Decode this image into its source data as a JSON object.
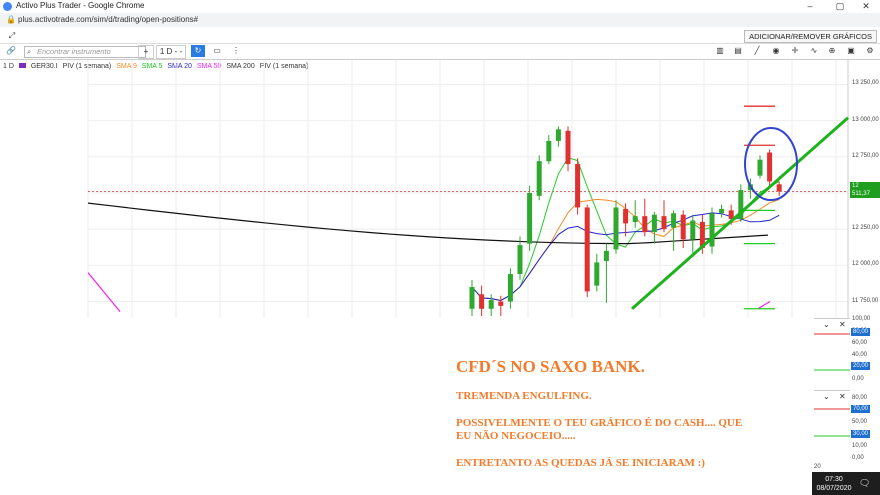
{
  "browser": {
    "window_title": "Activo Plus Trader - Google Chrome",
    "url": "plus.activotrade.com/sim/d/trading/open-positions#"
  },
  "toolbar": {
    "add_remove_label": "ADICIONAR/REMOVER GRÁFICOS"
  },
  "chart_toolbar": {
    "search_placeholder": "Encontrar instrumento",
    "plus": "+",
    "timeframe": "1 D",
    "dashes": "- -"
  },
  "legend": {
    "period": "1 D",
    "symbol": "GER30.I",
    "piv": "PIV (1 semana)",
    "sma9": "SMA 9",
    "sma5": "SMA 5",
    "sma20": "SMA 20",
    "sma50": "SMA 50",
    "sma200": "SMA 200",
    "piv2": "PIV (1 semana)"
  },
  "colors": {
    "sma9": "#f28c28",
    "sma5": "#22cc22",
    "sma20": "#2222cc",
    "sma50": "#ee22ee",
    "sma200": "#111111",
    "bull": "#2ea82e",
    "bear": "#e03030",
    "trendline": "#1eb31e",
    "circle": "#3344cc",
    "overlay_text": "#f47a2a"
  },
  "chart_data": {
    "type": "candlestick",
    "y_ticks": [
      "13 250,00",
      "13 000,00",
      "12 750,00",
      "12 500,00",
      "12 250,00",
      "12 000,00",
      "11 750,00"
    ],
    "ylim": [
      11700,
      13300
    ],
    "current_price": "12 511,37",
    "candles": [
      {
        "o": 11700,
        "c": 11850,
        "h": 11900,
        "l": 11650
      },
      {
        "o": 11800,
        "c": 11700,
        "h": 11860,
        "l": 11650
      },
      {
        "o": 11700,
        "c": 11760,
        "h": 11800,
        "l": 11650
      },
      {
        "o": 11750,
        "c": 11720,
        "h": 11790,
        "l": 11650
      },
      {
        "o": 11750,
        "c": 11940,
        "h": 11980,
        "l": 11700
      },
      {
        "o": 11940,
        "c": 12140,
        "h": 12200,
        "l": 11900
      },
      {
        "o": 12150,
        "c": 12500,
        "h": 12550,
        "l": 12100
      },
      {
        "o": 12480,
        "c": 12720,
        "h": 12760,
        "l": 12450
      },
      {
        "o": 12720,
        "c": 12860,
        "h": 12900,
        "l": 12700
      },
      {
        "o": 12860,
        "c": 12940,
        "h": 12960,
        "l": 12820
      },
      {
        "o": 12930,
        "c": 12700,
        "h": 12960,
        "l": 12650
      },
      {
        "o": 12700,
        "c": 12400,
        "h": 12740,
        "l": 12350
      },
      {
        "o": 12400,
        "c": 11820,
        "h": 12420,
        "l": 11780
      },
      {
        "o": 11860,
        "c": 12020,
        "h": 12080,
        "l": 11820
      },
      {
        "o": 12030,
        "c": 12100,
        "h": 12150,
        "l": 11740
      },
      {
        "o": 12110,
        "c": 12400,
        "h": 12450,
        "l": 12080
      },
      {
        "o": 12390,
        "c": 12290,
        "h": 12430,
        "l": 12200
      },
      {
        "o": 12300,
        "c": 12340,
        "h": 12450,
        "l": 12260
      },
      {
        "o": 12340,
        "c": 12230,
        "h": 12460,
        "l": 12200
      },
      {
        "o": 12230,
        "c": 12350,
        "h": 12370,
        "l": 12150
      },
      {
        "o": 12340,
        "c": 12250,
        "h": 12450,
        "l": 12230
      },
      {
        "o": 12260,
        "c": 12360,
        "h": 12380,
        "l": 12100
      },
      {
        "o": 12350,
        "c": 12180,
        "h": 12380,
        "l": 12120
      },
      {
        "o": 12180,
        "c": 12310,
        "h": 12350,
        "l": 12060
      },
      {
        "o": 12300,
        "c": 12120,
        "h": 12350,
        "l": 12080
      },
      {
        "o": 12130,
        "c": 12360,
        "h": 12400,
        "l": 12080
      },
      {
        "o": 12360,
        "c": 12390,
        "h": 12420,
        "l": 12330
      },
      {
        "o": 12380,
        "c": 12320,
        "h": 12420,
        "l": 12280
      },
      {
        "o": 12320,
        "c": 12520,
        "h": 12560,
        "l": 12300
      },
      {
        "o": 12520,
        "c": 12560,
        "h": 12600,
        "l": 12460
      },
      {
        "o": 12620,
        "c": 12730,
        "h": 12760,
        "l": 12600
      },
      {
        "o": 12780,
        "c": 12580,
        "h": 12800,
        "l": 12540
      },
      {
        "o": 12560,
        "c": 12511,
        "h": 12580,
        "l": 12480
      }
    ],
    "pivot_levels": [
      {
        "value": 13100,
        "color": "#e03030"
      },
      {
        "value": 12830,
        "color": "#e03030"
      },
      {
        "value": 12380,
        "color": "#22cc22"
      },
      {
        "value": 12150,
        "color": "#22cc22"
      },
      {
        "value": 11700,
        "color": "#22cc22"
      }
    ]
  },
  "indicators": {
    "panel1": {
      "ticks": [
        "100,00",
        "80,00",
        "60,00",
        "40,00",
        "20,00",
        "0,00"
      ],
      "hi": "80,00",
      "lo": "20,00"
    },
    "panel2": {
      "ticks": [
        "80,00",
        "70,00",
        "50,00",
        "30,00",
        "10,00",
        "0,00"
      ],
      "hi": "70,00",
      "lo": "30,00"
    },
    "bottom_tick": "20"
  },
  "overlay": {
    "heading": "CFD´S NO SAXO BANK.",
    "line1": "TREMENDA ENGULFING.",
    "line2a": "POSSIVELMENTE O TEU GRÁFICO É DO CASH.... QUE",
    "line2b": "EU NÃO NEGOCEIO.....",
    "line3": "ENTRETANTO AS QUEDAS JÁ SE INICIARAM :)"
  },
  "taskbar": {
    "time": "07:30",
    "date": "08/07/2020"
  }
}
